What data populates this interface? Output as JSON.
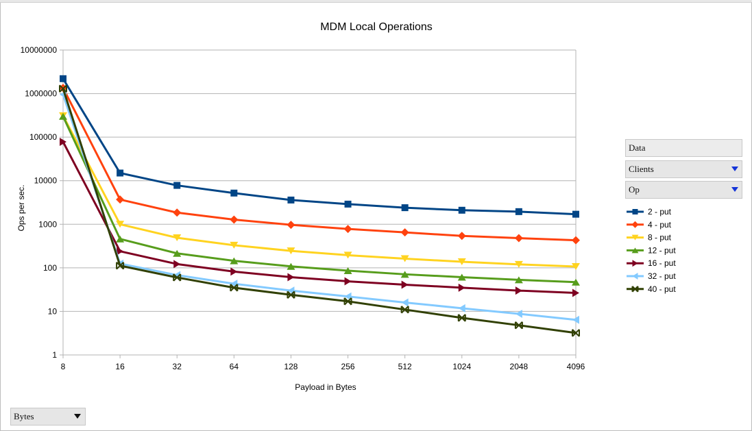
{
  "chart_data": {
    "type": "line",
    "title": "MDM Local Operations",
    "xlabel": "Payload in Bytes",
    "ylabel": "Ops per sec.",
    "y_scale": "log",
    "ylim": [
      1,
      10000000
    ],
    "y_ticks": [
      "10000000",
      "1000000",
      "100000",
      "10000",
      "1000",
      "100",
      "10",
      "1"
    ],
    "categories": [
      "8",
      "16",
      "32",
      "64",
      "128",
      "256",
      "512",
      "1024",
      "2048",
      "4096"
    ],
    "grid": "horizontal",
    "legend_position": "right",
    "series": [
      {
        "name": "2 - put",
        "color": "#004586",
        "marker": "square",
        "values": [
          2200000,
          15000,
          7800,
          5200,
          3600,
          2900,
          2400,
          2100,
          1950,
          1700
        ]
      },
      {
        "name": "4 - put",
        "color": "#ff420e",
        "marker": "diamond",
        "values": [
          1350000,
          3700,
          1850,
          1280,
          970,
          780,
          650,
          540,
          480,
          430
        ]
      },
      {
        "name": "8 - put",
        "color": "#ffd320",
        "marker": "triangle-down",
        "values": [
          310000,
          1000,
          490,
          330,
          245,
          195,
          162,
          138,
          120,
          107
        ]
      },
      {
        "name": "12 - put",
        "color": "#579d1c",
        "marker": "triangle-up",
        "values": [
          300000,
          460,
          215,
          145,
          108,
          86,
          71,
          61,
          53,
          47
        ]
      },
      {
        "name": "16 - put",
        "color": "#7e0021",
        "marker": "triangle-right",
        "values": [
          78000,
          240,
          122,
          82,
          61,
          49,
          41,
          35,
          30,
          26.5
        ]
      },
      {
        "name": "32 - put",
        "color": "#83caff",
        "marker": "triangle-left",
        "values": [
          950000,
          125,
          68,
          43,
          30,
          22,
          16,
          11.8,
          8.8,
          6.4
        ]
      },
      {
        "name": "40 - put",
        "color": "#314004",
        "marker": "x",
        "values": [
          1300000,
          112,
          60,
          35,
          24,
          17,
          11,
          7.1,
          4.8,
          3.2
        ]
      }
    ]
  },
  "pivot": {
    "data_field": "Data",
    "clients_field": "Clients",
    "op_field": "Op",
    "bytes_field": "Bytes"
  }
}
